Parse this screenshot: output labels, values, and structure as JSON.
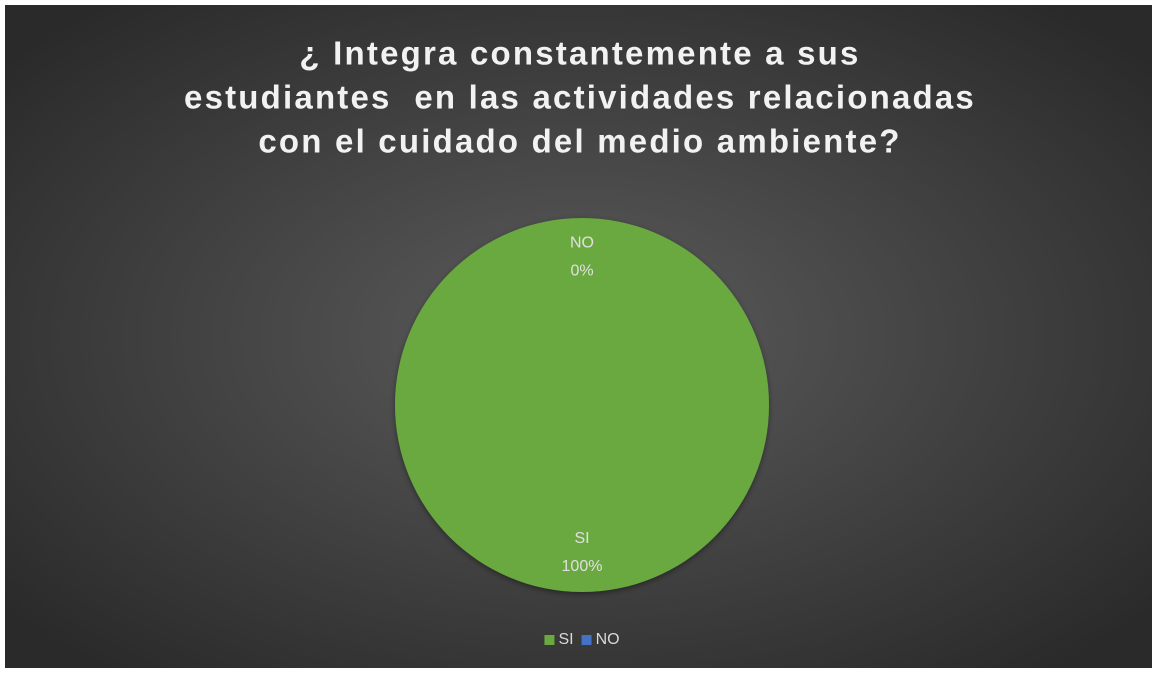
{
  "chart_data": {
    "type": "pie",
    "title": [
      "¿ Integra constantemente a sus",
      "estudiantes  en las actividades relacionadas",
      "con el cuidado del medio ambiente?"
    ],
    "categories": [
      "SI",
      "NO"
    ],
    "values": [
      100,
      0
    ],
    "value_labels": [
      "100%",
      "0%"
    ],
    "colors": [
      "#6aa93f",
      "#4472c4"
    ],
    "legend": "bottom"
  }
}
